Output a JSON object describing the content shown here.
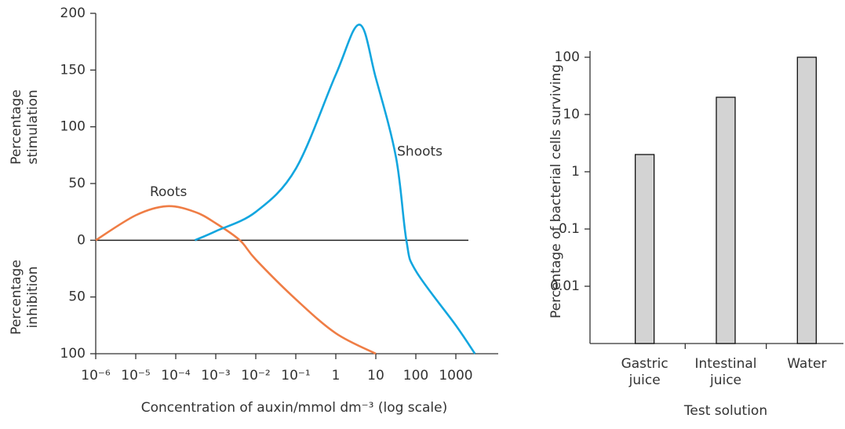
{
  "chart_data": [
    {
      "type": "line",
      "y_label_upper": "Percentage stimulation",
      "y_label_lower": "Percentage inhibition",
      "x_label": "Concentration of auxin/mmol dm⁻³ (log scale)",
      "x_scale": "log",
      "xlim": [
        1e-06,
        10000
      ],
      "xticks": [
        {
          "value": 1e-06,
          "label": "10⁻⁶"
        },
        {
          "value": 1e-05,
          "label": "10⁻⁵"
        },
        {
          "value": 0.0001,
          "label": "10⁻⁴"
        },
        {
          "value": 0.001,
          "label": "10⁻³"
        },
        {
          "value": 0.01,
          "label": "10⁻²"
        },
        {
          "value": 0.1,
          "label": "10⁻¹"
        },
        1,
        10,
        100,
        1000
      ],
      "ylim": [
        -100,
        200
      ],
      "yticks": [
        {
          "value": -100,
          "label": "100"
        },
        {
          "value": -50,
          "label": "50"
        },
        0,
        50,
        100,
        150,
        200
      ],
      "series": [
        {
          "name": "Roots",
          "color": "#ef7d45",
          "x": [
            1e-06,
            1e-05,
            6e-05,
            0.0003,
            0.001,
            0.004,
            0.01,
            0.1,
            1,
            10
          ],
          "values": [
            0,
            22,
            30,
            25,
            15,
            0,
            -17,
            -52,
            -82,
            -100
          ]
        },
        {
          "name": "Shoots",
          "color": "#12a6df",
          "x": [
            0.0003,
            0.001,
            0.01,
            0.1,
            1,
            3.9,
            10,
            32,
            58,
            100,
            1000,
            3000
          ],
          "values": [
            0,
            8,
            25,
            63,
            146,
            190,
            143,
            73,
            0,
            -27,
            -75,
            -100
          ]
        }
      ]
    },
    {
      "type": "bar",
      "y_label": "Percentage of bacterial cells surviving",
      "x_label": "Test solution",
      "y_scale": "log",
      "categories": [
        "Gastric juice",
        "Intestinal juice",
        "Water"
      ],
      "values": [
        2,
        20,
        100
      ],
      "color": "#d3d3d3",
      "ylim": [
        0.001,
        100
      ],
      "yticks": [
        0.01,
        0.1,
        1,
        10,
        100
      ]
    }
  ]
}
